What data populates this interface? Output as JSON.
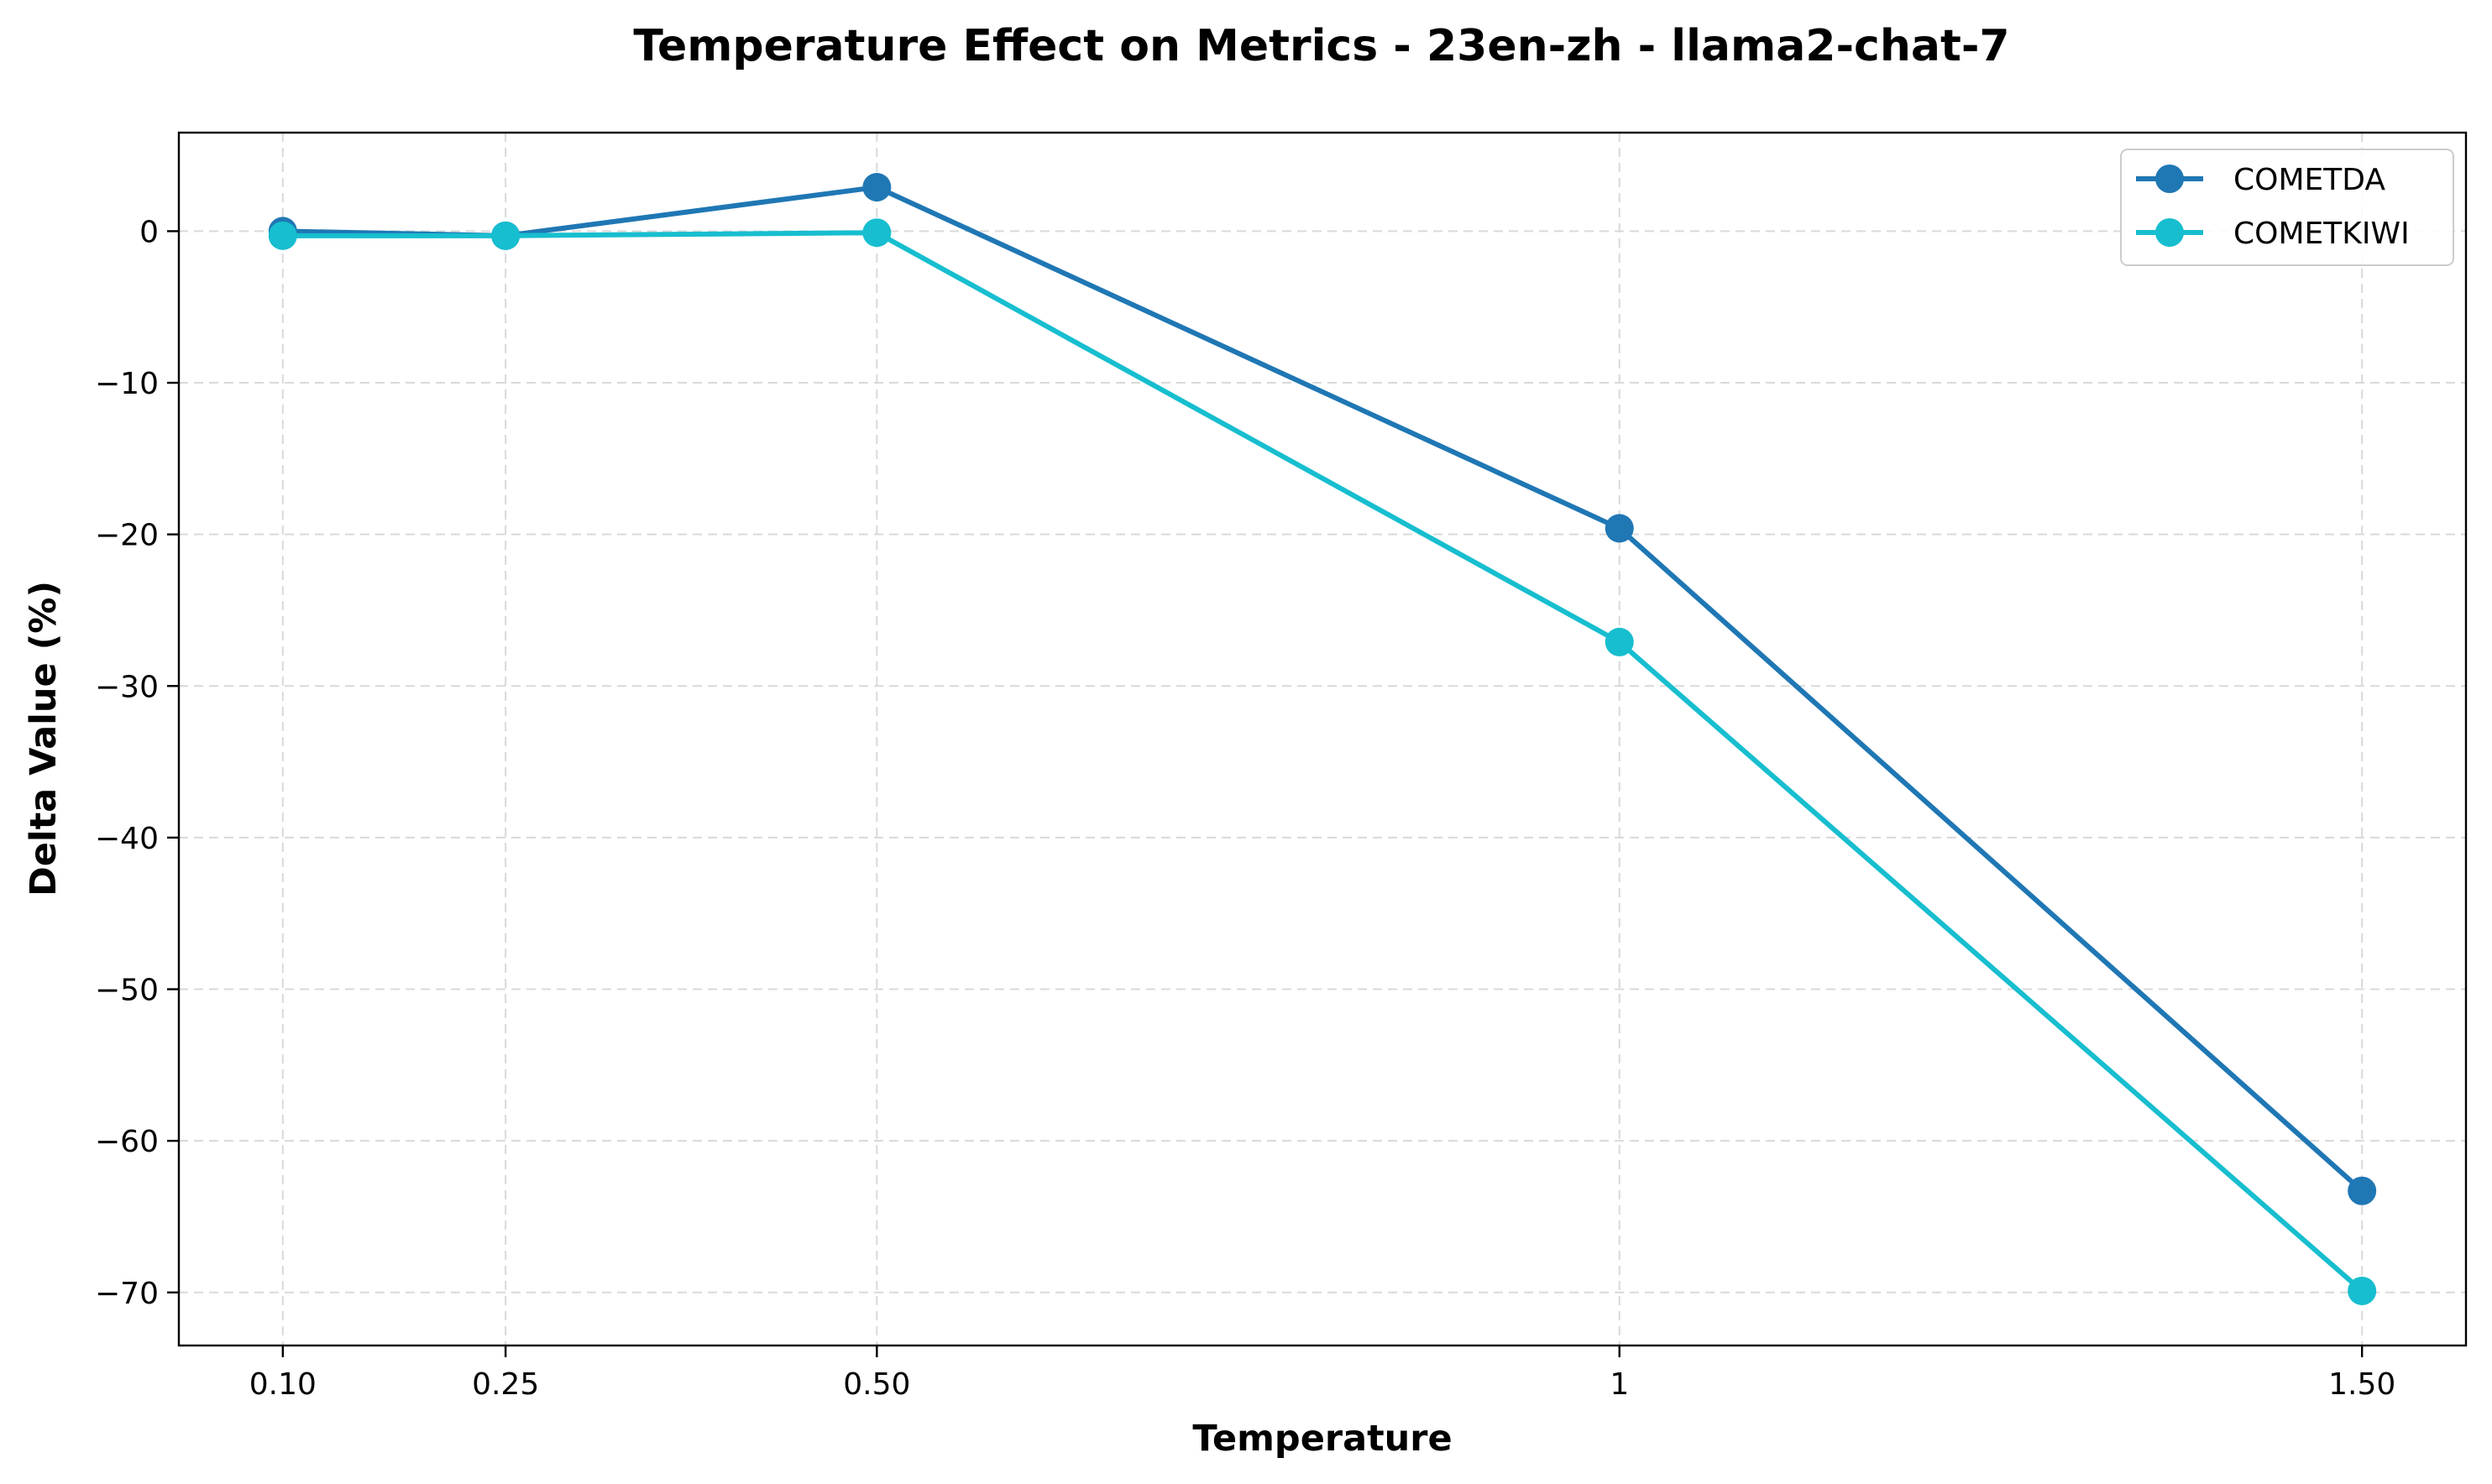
{
  "chart_data": {
    "type": "line",
    "title": "Temperature Effect on Metrics - 23en-zh - llama2-chat-7",
    "xlabel": "Temperature",
    "ylabel": "Delta Value (%)",
    "x": [
      0.1,
      0.25,
      0.5,
      1,
      1.5
    ],
    "x_tick_labels": [
      "0.10",
      "0.25",
      "0.50",
      "1",
      "1.50"
    ],
    "y_ticks": [
      0,
      -10,
      -20,
      -30,
      -40,
      -50,
      -60,
      -70
    ],
    "y_tick_labels": [
      "0",
      "−10",
      "−20",
      "−30",
      "−40",
      "−50",
      "−60",
      "−70"
    ],
    "xlim": [
      0.03,
      1.57
    ],
    "ylim": [
      -73.5,
      6.5
    ],
    "grid": true,
    "legend_position": "top-right",
    "series": [
      {
        "name": "COMETDA",
        "color": "#1f77b4",
        "values": [
          0.0,
          -0.3,
          2.9,
          -19.6,
          -63.3
        ]
      },
      {
        "name": "COMETKIWI",
        "color": "#17becf",
        "values": [
          -0.3,
          -0.3,
          -0.1,
          -27.1,
          -69.9
        ]
      }
    ]
  }
}
